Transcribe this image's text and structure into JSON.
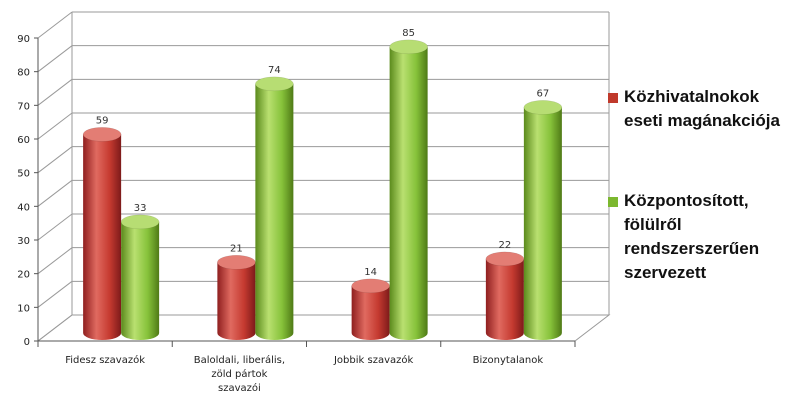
{
  "chart_data": {
    "type": "bar",
    "style": "3d-cylinder",
    "title": "",
    "xlabel": "",
    "ylabel": "",
    "ylim": [
      0,
      90
    ],
    "yticks": [
      0,
      10,
      20,
      30,
      40,
      50,
      60,
      70,
      80,
      90
    ],
    "grid": true,
    "legend_position": "right",
    "categories": [
      [
        "Fidesz szavazók"
      ],
      [
        "Baloldali, liberális,",
        "zöld pártok",
        "szavazói"
      ],
      [
        "Jobbik szavazók"
      ],
      [
        "Bizonytalanok"
      ]
    ],
    "series": [
      {
        "name": [
          "Közhivatalnokok",
          "eseti magánakciója"
        ],
        "color": "#c0392b",
        "values": [
          59,
          21,
          14,
          22
        ]
      },
      {
        "name": [
          "Központosított,",
          "fölülről",
          "rendszerszerűen",
          "szervezett"
        ],
        "color": "#7cb82f",
        "values": [
          33,
          74,
          85,
          67
        ]
      }
    ]
  }
}
